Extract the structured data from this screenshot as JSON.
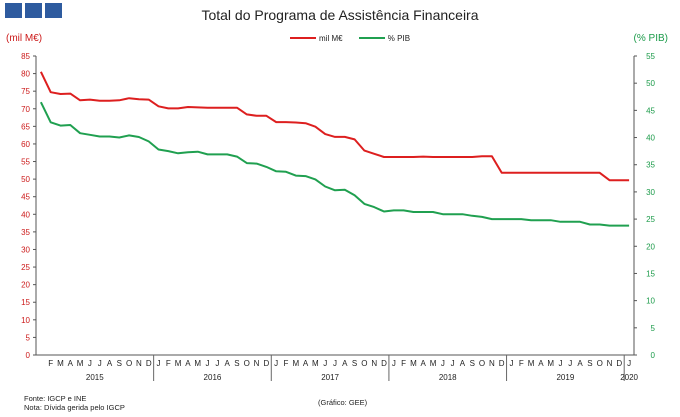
{
  "chart_data": {
    "type": "line",
    "title": "Total do Programa de Assistência Financeira",
    "ylabel": "(mil M€)",
    "y2label": "(% PIB)",
    "ylim": [
      0,
      85
    ],
    "y2lim": [
      0,
      55
    ],
    "yticks": [
      0,
      5,
      10,
      15,
      20,
      25,
      30,
      35,
      40,
      45,
      50,
      55,
      60,
      65,
      70,
      75,
      80,
      85
    ],
    "y2ticks": [
      0,
      5,
      10,
      15,
      20,
      25,
      30,
      35,
      40,
      45,
      50,
      55
    ],
    "legend_position": "top-center",
    "years": [
      "2015",
      "2016",
      "2017",
      "2018",
      "2019",
      "2020"
    ],
    "month_letters": [
      "J",
      "F",
      "M",
      "A",
      "M",
      "J",
      "J",
      "A",
      "S",
      "O",
      "N",
      "D"
    ],
    "x": [
      "2015-01",
      "2015-02",
      "2015-03",
      "2015-04",
      "2015-05",
      "2015-06",
      "2015-07",
      "2015-08",
      "2015-09",
      "2015-10",
      "2015-11",
      "2015-12",
      "2016-01",
      "2016-02",
      "2016-03",
      "2016-04",
      "2016-05",
      "2016-06",
      "2016-07",
      "2016-08",
      "2016-09",
      "2016-10",
      "2016-11",
      "2016-12",
      "2017-01",
      "2017-02",
      "2017-03",
      "2017-04",
      "2017-05",
      "2017-06",
      "2017-07",
      "2017-08",
      "2017-09",
      "2017-10",
      "2017-11",
      "2017-12",
      "2018-01",
      "2018-02",
      "2018-03",
      "2018-04",
      "2018-05",
      "2018-06",
      "2018-07",
      "2018-08",
      "2018-09",
      "2018-10",
      "2018-11",
      "2018-12",
      "2019-01",
      "2019-02",
      "2019-03",
      "2019-04",
      "2019-05",
      "2019-06",
      "2019-07",
      "2019-08",
      "2019-09",
      "2019-10",
      "2019-11",
      "2019-12",
      "2020-01"
    ],
    "series": [
      {
        "name": "mil M€",
        "axis": "left",
        "color": "#dd1f1f",
        "values": [
          80.5,
          74.7,
          74.2,
          74.3,
          72.4,
          72.6,
          72.3,
          72.3,
          72.4,
          73.0,
          72.7,
          72.6,
          70.7,
          70.1,
          70.1,
          70.5,
          70.4,
          70.3,
          70.3,
          70.3,
          70.3,
          68.4,
          68.0,
          68.0,
          66.2,
          66.2,
          66.1,
          65.9,
          64.9,
          62.8,
          62.0,
          62.0,
          61.3,
          58.1,
          57.2,
          56.3,
          56.3,
          56.3,
          56.3,
          56.4,
          56.3,
          56.3,
          56.3,
          56.3,
          56.3,
          56.5,
          56.5,
          51.8,
          51.8,
          51.8,
          51.8,
          51.8,
          51.8,
          51.8,
          51.8,
          51.8,
          51.8,
          51.8,
          49.7,
          49.7,
          49.7
        ]
      },
      {
        "name": "% PIB",
        "axis": "right",
        "color": "#20a050",
        "values": [
          46.5,
          42.8,
          42.2,
          42.3,
          40.8,
          40.5,
          40.2,
          40.2,
          40.0,
          40.4,
          40.1,
          39.3,
          37.8,
          37.5,
          37.1,
          37.3,
          37.4,
          36.9,
          36.9,
          36.9,
          36.5,
          35.3,
          35.2,
          34.6,
          33.8,
          33.7,
          33.0,
          32.9,
          32.3,
          31.0,
          30.3,
          30.4,
          29.4,
          27.8,
          27.2,
          26.4,
          26.6,
          26.6,
          26.3,
          26.3,
          26.3,
          25.9,
          25.9,
          25.9,
          25.6,
          25.4,
          25.0,
          25.0,
          25.0,
          25.0,
          24.8,
          24.8,
          24.8,
          24.5,
          24.5,
          24.5,
          24.0,
          24.0,
          23.8,
          23.8,
          23.8
        ]
      }
    ]
  },
  "header": {
    "title": "Total do Programa de Assistência Financeira",
    "left_unit": "(mil M€)",
    "right_unit": "(% PIB)"
  },
  "legend": {
    "items": [
      {
        "label": "mil M€",
        "color": "#dd1f1f"
      },
      {
        "label": "% PIB",
        "color": "#20a050"
      }
    ]
  },
  "footer": {
    "source": "Fonte: IGCP e INE",
    "note": "Nota: Dívida gerida pelo IGCP",
    "credit": "(Gráfico: GEE)"
  }
}
